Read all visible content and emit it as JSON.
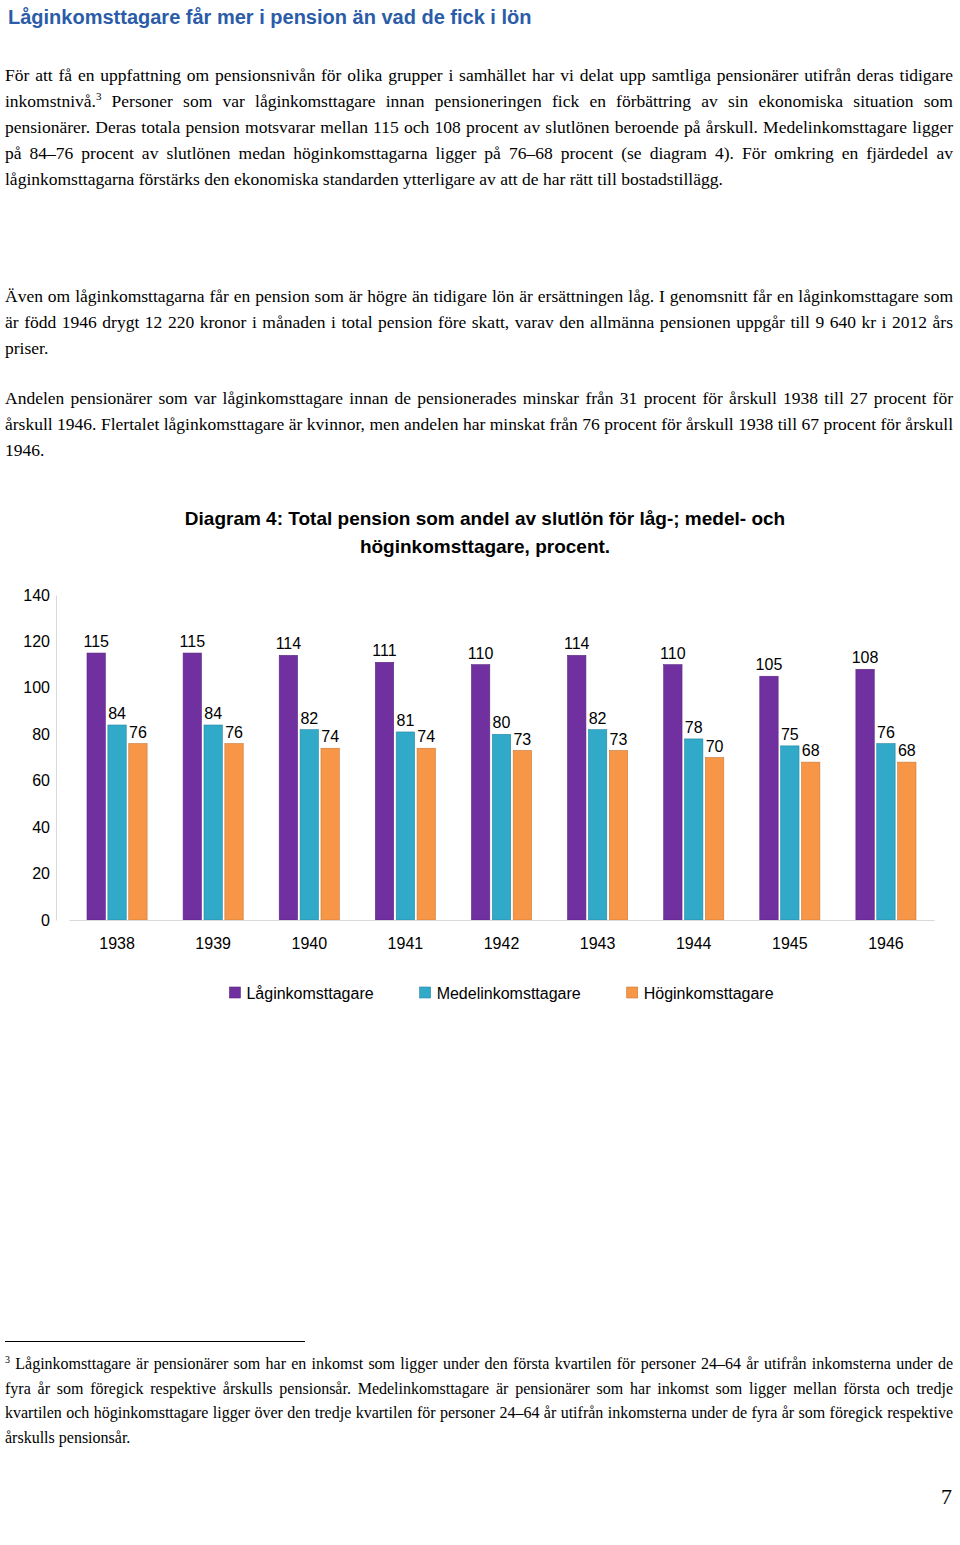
{
  "document": {
    "title": "Låginkomsttagare får mer i pension än vad de fick i lön",
    "paragraphs": [
      {
        "runs": [
          {
            "text": "För att få en uppfattning om pensionsnivån för olika grupper i samhället har vi delat upp samtliga pensionärer utifrån deras tidigare inkomstnivå."
          },
          {
            "sup": "3"
          },
          {
            "text": " Personer som var låginkomsttagare innan pensioneringen fick en förbättring av sin ekonomiska situation som pensionärer. Deras totala pension motsvarar mellan 115 och 108 procent av slutlönen beroende på årskull. Medelinkomsttagare ligger på 84–76 procent av slutlönen medan höginkomsttagarna ligger på 76–68 procent (se diagram 4). För omkring en fjärdedel av låginkomsttagarna förstärks den ekonomiska standarden ytterligare av att de har rätt till bostadstillägg."
          }
        ]
      },
      {
        "runs": [
          {
            "text": "Även om låginkomsttagarna får en pension som är högre än tidigare lön är ersättningen låg. I genomsnitt får en låginkomsttagare som är född 1946 drygt 12 220 kronor i månaden i total pension före skatt, varav den allmänna pensionen uppgår till 9 640 kr i 2012 års priser."
          }
        ]
      },
      {
        "runs": [
          {
            "text": "Andelen pensionärer som var låginkomsttagare innan de pensionerades minskar från 31 procent för årskull 1938 till 27 procent för årskull 1946. Flertalet låginkomsttagare är kvinnor, men andelen har minskat från 76 procent för årskull 1938 till 67 procent för årskull 1946."
          }
        ]
      }
    ],
    "footnote": {
      "runs": [
        {
          "sup": "3"
        },
        {
          "text": " Låginkomsttagare är pensionärer som har en inkomst som ligger under den första kvartilen för personer 24–64 år utifrån inkomsterna under de fyra år som föregick respektive årskulls pensionsår. Medelinkomsttagare är pensionärer som har inkomst som ligger mellan första och tredje kvartilen och höginkomsttagare ligger över den tredje kvartilen för personer 24–64 år utifrån inkomsterna under de fyra år som föregick respektive årskulls pensionsår."
        }
      ]
    },
    "page_number": "7"
  },
  "chart_data": {
    "type": "bar",
    "title": "Diagram 4: Total pension som andel av slutlön för låg-; medel- och höginkomsttagare, procent.",
    "categories": [
      "1938",
      "1939",
      "1940",
      "1941",
      "1942",
      "1943",
      "1944",
      "1945",
      "1946"
    ],
    "series": [
      {
        "name": "Låginkomsttagare",
        "color": "#7030a0",
        "values": [
          115,
          115,
          114,
          111,
          110,
          114,
          110,
          105,
          108
        ]
      },
      {
        "name": "Medelinkomsttagare",
        "color": "#31a9c9",
        "values": [
          84,
          84,
          82,
          81,
          80,
          82,
          78,
          75,
          76
        ]
      },
      {
        "name": "Höginkomsttagare",
        "color": "#f79646",
        "values": [
          76,
          76,
          74,
          74,
          73,
          73,
          70,
          68,
          68
        ]
      }
    ],
    "ylim": [
      0,
      140
    ],
    "yticks": [
      0,
      20,
      40,
      60,
      80,
      100,
      120,
      140
    ],
    "grid": false,
    "legend": "bottom",
    "data_labels": true
  }
}
